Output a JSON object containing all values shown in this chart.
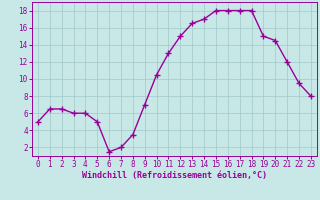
{
  "x": [
    0,
    1,
    2,
    3,
    4,
    5,
    6,
    7,
    8,
    9,
    10,
    11,
    12,
    13,
    14,
    15,
    16,
    17,
    18,
    19,
    20,
    21,
    22,
    23
  ],
  "y": [
    5,
    6.5,
    6.5,
    6,
    6,
    5,
    1.5,
    2,
    3.5,
    7,
    10.5,
    13,
    15,
    16.5,
    17,
    18,
    18,
    18,
    18,
    15,
    14.5,
    12,
    9.5,
    8
  ],
  "line_color": "#990099",
  "marker": "+",
  "marker_color": "#990099",
  "bg_color": "#c8e8e8",
  "grid_color": "#a0c8c8",
  "xlabel": "Windchill (Refroidissement éolien,°C)",
  "xlabel_color": "#990099",
  "tick_color": "#990099",
  "spine_color": "#990099",
  "xlim": [
    -0.5,
    23.5
  ],
  "ylim": [
    1,
    19
  ],
  "yticks": [
    2,
    4,
    6,
    8,
    10,
    12,
    14,
    16,
    18
  ],
  "xticks": [
    0,
    1,
    2,
    3,
    4,
    5,
    6,
    7,
    8,
    9,
    10,
    11,
    12,
    13,
    14,
    15,
    16,
    17,
    18,
    19,
    20,
    21,
    22,
    23
  ],
  "line_width": 1.0,
  "marker_size": 4,
  "font_size_label": 6.0,
  "font_size_tick": 5.5
}
